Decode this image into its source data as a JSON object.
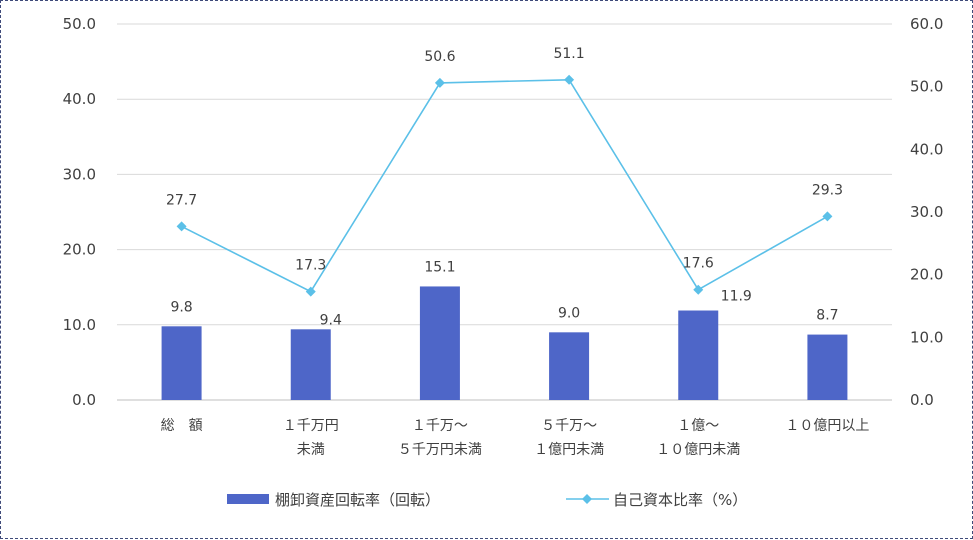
{
  "chart_data": {
    "type": "bar",
    "categories": [
      [
        "総　額"
      ],
      [
        "１千万円",
        "未満"
      ],
      [
        "１千万～",
        "５千万円未満"
      ],
      [
        "５千万～",
        "１億円未満"
      ],
      [
        "１億～",
        "１０億円未満"
      ],
      [
        "１０億円以上"
      ]
    ],
    "series": [
      {
        "name": "棚卸資産回転率（回転）",
        "type": "bar",
        "axis": "left",
        "color": "#4e66c8",
        "values": [
          9.8,
          9.4,
          15.1,
          9.0,
          11.9,
          8.7
        ],
        "labels": [
          "9.8",
          "9.4",
          "15.1",
          "9.0",
          "11.9",
          "8.7"
        ]
      },
      {
        "name": "自己資本比率（%）",
        "type": "line",
        "axis": "right",
        "color": "#5bc0e8",
        "values": [
          27.7,
          17.3,
          50.6,
          51.1,
          17.6,
          29.3
        ],
        "labels": [
          "27.7",
          "17.3",
          "50.6",
          "51.1",
          "17.6",
          "29.3"
        ]
      }
    ],
    "y_left": {
      "min": 0,
      "max": 50,
      "ticks": [
        "0.0",
        "10.0",
        "20.0",
        "30.0",
        "40.0",
        "50.0"
      ]
    },
    "y_right": {
      "min": 0,
      "max": 60,
      "ticks": [
        "0.0",
        "10.0",
        "20.0",
        "30.0",
        "40.0",
        "50.0",
        "60.0"
      ]
    },
    "grid": true,
    "legend_position": "bottom"
  }
}
